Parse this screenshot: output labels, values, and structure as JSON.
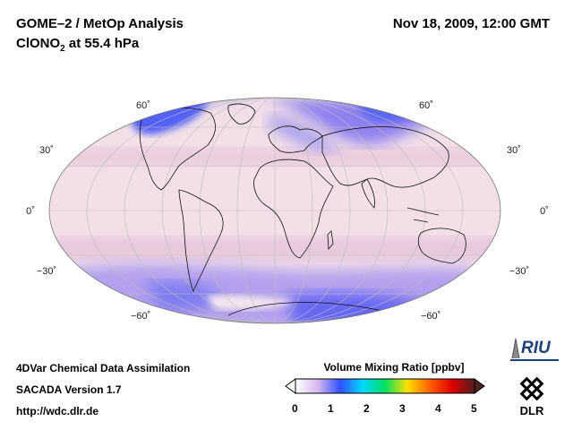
{
  "header": {
    "title_line1": "GOME–2 / MetOp Analysis",
    "species": "ClONO",
    "species_sub": "2",
    "level": " at 55.4 hPa",
    "datetime": "Nov 18, 2009, 12:00 GMT"
  },
  "map": {
    "projection": "Mollweide",
    "lat_labels": {
      "n60": "60˚",
      "n30": "30˚",
      "eq": "0˚",
      "s30": "−30˚",
      "s60": "−60˚"
    },
    "fill_colors": {
      "background": "#f1dde6",
      "band": "#e7c9dc",
      "high": "#5d63f4",
      "mid": "#a488ee"
    }
  },
  "footer": {
    "line1": "4DVar Chemical Data Assimilation",
    "line2": "SACADA Version 1.7",
    "line3": "http://wdc.dlr.de"
  },
  "colorbar": {
    "title": "Volume Mixing Ratio [ppbv]",
    "ticks": [
      "0",
      "1",
      "2",
      "3",
      "4",
      "5"
    ],
    "range": [
      0,
      5
    ],
    "colors": [
      "#ffffff",
      "#d8b8ee",
      "#3050ff",
      "#00d8ff",
      "#00e060",
      "#ffe000",
      "#ff6000",
      "#e00000",
      "#502020"
    ]
  },
  "logos": {
    "riu": "RIU",
    "dlr": "DLR"
  }
}
